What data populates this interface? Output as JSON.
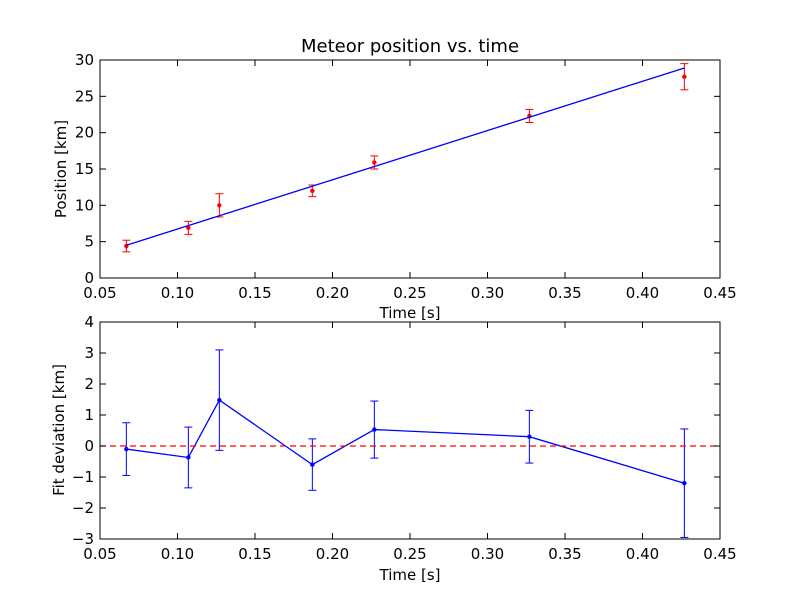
{
  "chart_data": [
    {
      "type": "scatter",
      "title": "Meteor position vs. time",
      "xlabel": "Time [s]",
      "ylabel": "Position [km]",
      "xlim": [
        0.05,
        0.45
      ],
      "ylim": [
        0,
        30
      ],
      "xticks": [
        "0.05",
        "0.10",
        "0.15",
        "0.20",
        "0.25",
        "0.30",
        "0.35",
        "0.40",
        "0.45"
      ],
      "yticks": [
        "0",
        "5",
        "10",
        "15",
        "20",
        "25",
        "30"
      ],
      "grid": false,
      "series": [
        {
          "kind": "errorbar",
          "color": "#ff0000",
          "x": [
            0.067,
            0.107,
            0.127,
            0.187,
            0.227,
            0.327,
            0.427
          ],
          "y": [
            4.4,
            6.9,
            10.0,
            12.0,
            15.9,
            22.3,
            27.7
          ],
          "yerr": [
            0.8,
            0.9,
            1.6,
            0.8,
            0.9,
            0.9,
            1.8
          ]
        },
        {
          "kind": "line",
          "color": "#0000ff",
          "x": [
            0.067,
            0.427
          ],
          "y": [
            4.5,
            28.9
          ]
        }
      ]
    },
    {
      "type": "line",
      "title": "",
      "xlabel": "Time [s]",
      "ylabel": "Fit deviation [km]",
      "xlim": [
        0.05,
        0.45
      ],
      "ylim": [
        -3,
        4
      ],
      "xticks": [
        "0.05",
        "0.10",
        "0.15",
        "0.20",
        "0.25",
        "0.30",
        "0.35",
        "0.40",
        "0.45"
      ],
      "yticks": [
        "−3",
        "−2",
        "−1",
        "0",
        "1",
        "2",
        "3",
        "4"
      ],
      "grid": false,
      "series": [
        {
          "kind": "errorbar-line",
          "color": "#0000ff",
          "x": [
            0.067,
            0.107,
            0.127,
            0.187,
            0.227,
            0.327,
            0.427
          ],
          "y": [
            -0.1,
            -0.37,
            1.48,
            -0.6,
            0.53,
            0.3,
            -1.2
          ],
          "yerr": [
            0.85,
            0.98,
            1.62,
            0.83,
            0.92,
            0.85,
            1.75
          ]
        },
        {
          "kind": "hline",
          "color": "#ff0000",
          "dashed": true,
          "y": 0
        }
      ]
    }
  ]
}
